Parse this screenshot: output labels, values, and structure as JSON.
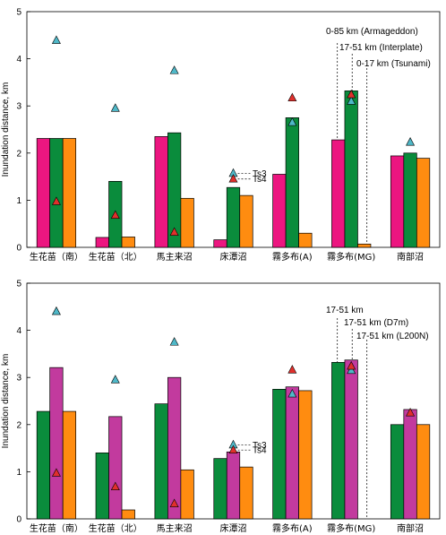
{
  "chart_data": [
    {
      "type": "bar",
      "title": "",
      "ylabel": "Inundation distance, km",
      "ylim": [
        0,
        5
      ],
      "yticks": [
        0,
        1,
        2,
        3,
        4,
        5
      ],
      "grid": false,
      "categories": [
        "生花苗（南）",
        "生花苗（北）",
        "馬主来沼",
        "床潭沼",
        "霧多布(A)",
        "霧多布(MG)",
        "南部沼"
      ],
      "series": [
        {
          "name": "0-85 km (Armageddon)",
          "color": "#ec1680",
          "values": [
            2.31,
            0.21,
            2.35,
            0.16,
            1.55,
            2.28,
            1.94
          ]
        },
        {
          "name": "17-51 km (Interplate)",
          "color": "#0a8c3c",
          "values": [
            2.31,
            1.4,
            2.43,
            1.27,
            2.75,
            3.32,
            2.0
          ]
        },
        {
          "name": "0-17 km (Tsunami)",
          "color": "#ff8c10",
          "values": [
            2.31,
            0.22,
            1.04,
            1.1,
            0.3,
            0.07,
            1.89
          ]
        }
      ],
      "markers": [
        {
          "name": "Ts3",
          "color": "#4fb8c8",
          "values": [
            4.39,
            2.95,
            3.75,
            1.57,
            2.65,
            3.1,
            2.23
          ]
        },
        {
          "name": "Ts4",
          "color": "#e0302c",
          "values": [
            0.97,
            0.68,
            0.32,
            1.45,
            3.17,
            3.24,
            null
          ]
        }
      ],
      "annotations": {
        "ts3": "Ts3",
        "ts4": "Ts4"
      }
    },
    {
      "type": "bar",
      "title": "",
      "ylabel": "Inundation distance, km",
      "ylim": [
        0,
        5
      ],
      "yticks": [
        0,
        1,
        2,
        3,
        4,
        5
      ],
      "grid": false,
      "categories": [
        "生花苗（南）",
        "生花苗（北）",
        "馬主来沼",
        "床潭沼",
        "霧多布(A)",
        "霧多布(MG)",
        "南部沼"
      ],
      "series": [
        {
          "name": "17-51 km",
          "color": "#0a8c3c",
          "values": [
            2.28,
            1.4,
            2.44,
            1.28,
            2.75,
            3.32,
            2.0
          ]
        },
        {
          "name": "17-51 km (D7m)",
          "color": "#c23a9e",
          "values": [
            3.21,
            2.17,
            3.0,
            1.42,
            2.8,
            3.37,
            2.32
          ]
        },
        {
          "name": "17-51 km (L200N)",
          "color": "#ff8c10",
          "values": [
            2.28,
            0.19,
            1.04,
            1.1,
            2.72,
            null,
            2.0
          ]
        }
      ],
      "markers": [
        {
          "name": "Ts3",
          "color": "#4fb8c8",
          "values": [
            4.4,
            2.95,
            3.75,
            1.57,
            2.65,
            3.15,
            null
          ]
        },
        {
          "name": "Ts4",
          "color": "#e0302c",
          "values": [
            0.97,
            0.68,
            0.32,
            1.46,
            3.16,
            3.24,
            2.25
          ]
        }
      ],
      "annotations": {
        "ts3": "Ts3",
        "ts4": "Ts4"
      }
    }
  ]
}
